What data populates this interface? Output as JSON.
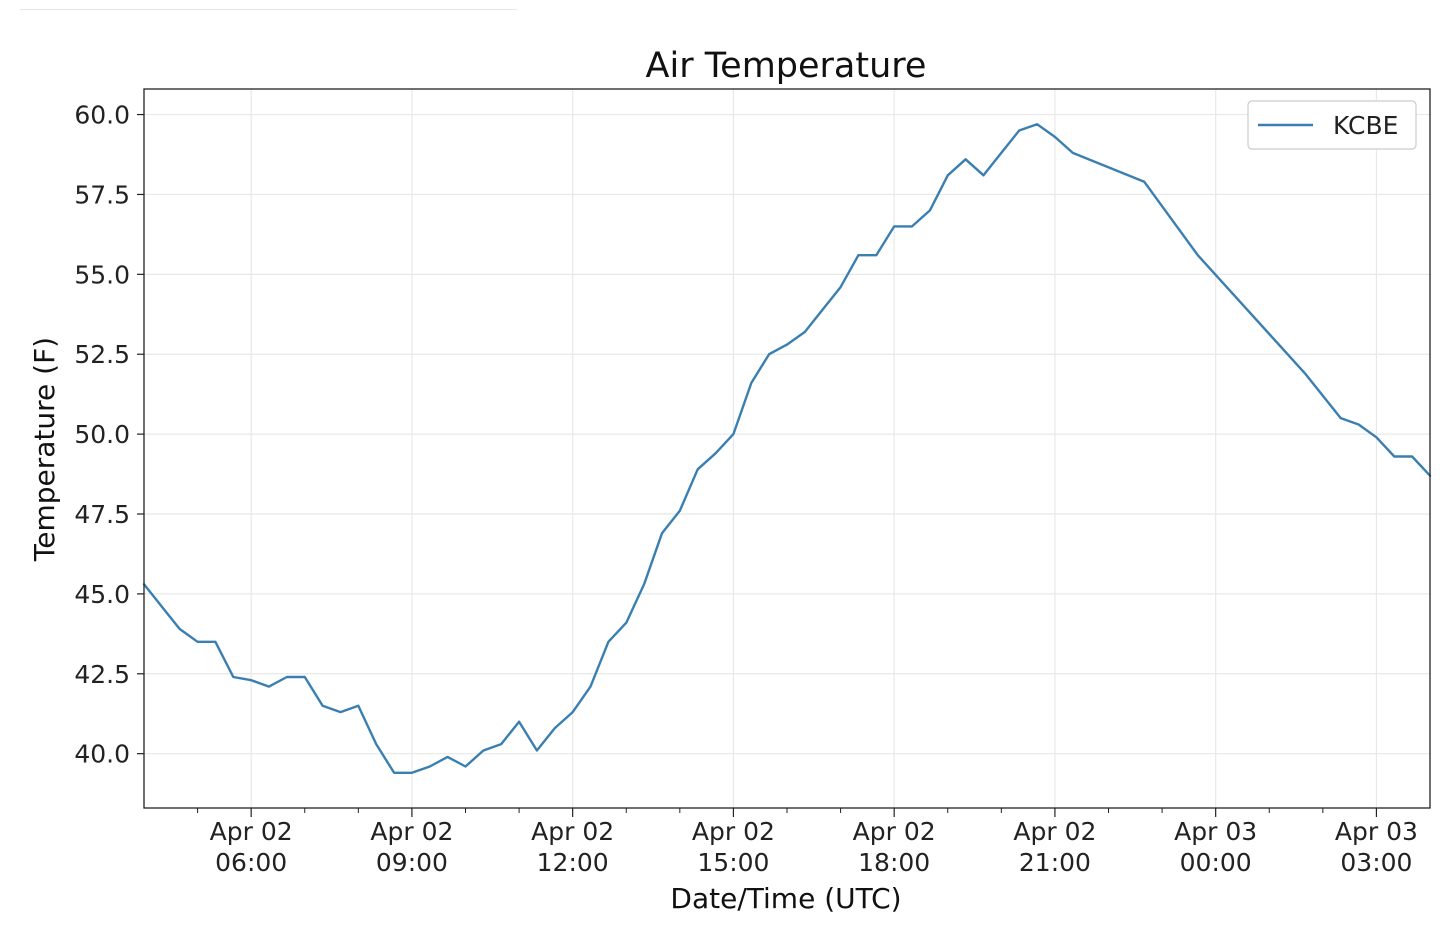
{
  "chart_data": {
    "type": "line",
    "title": "Air Temperature",
    "xlabel": "Date/Time (UTC)",
    "ylabel": "Temperature (F)",
    "ylim": [
      38.3,
      60.8
    ],
    "xlim": [
      "2025-04-02T04:00",
      "2025-04-03T04:00"
    ],
    "grid": true,
    "legend": "top-right",
    "x_ticks": [
      {
        "value": "2025-04-02T06:00",
        "line1": "Apr 02",
        "line2": "06:00"
      },
      {
        "value": "2025-04-02T09:00",
        "line1": "Apr 02",
        "line2": "09:00"
      },
      {
        "value": "2025-04-02T12:00",
        "line1": "Apr 02",
        "line2": "12:00"
      },
      {
        "value": "2025-04-02T15:00",
        "line1": "Apr 02",
        "line2": "15:00"
      },
      {
        "value": "2025-04-02T18:00",
        "line1": "Apr 02",
        "line2": "18:00"
      },
      {
        "value": "2025-04-02T21:00",
        "line1": "Apr 02",
        "line2": "21:00"
      },
      {
        "value": "2025-04-03T00:00",
        "line1": "Apr 03",
        "line2": "00:00"
      },
      {
        "value": "2025-04-03T03:00",
        "line1": "Apr 03",
        "line2": "03:00"
      }
    ],
    "y_ticks": [
      "40.0",
      "42.5",
      "45.0",
      "47.5",
      "50.0",
      "52.5",
      "55.0",
      "57.5",
      "60.0"
    ],
    "series": [
      {
        "name": "KCBE",
        "color": "#3a7fb2",
        "x": [
          "2025-04-02T04:00",
          "2025-04-02T04:20",
          "2025-04-02T04:40",
          "2025-04-02T05:00",
          "2025-04-02T05:20",
          "2025-04-02T05:40",
          "2025-04-02T06:00",
          "2025-04-02T06:20",
          "2025-04-02T06:40",
          "2025-04-02T07:00",
          "2025-04-02T07:20",
          "2025-04-02T07:40",
          "2025-04-02T08:00",
          "2025-04-02T08:20",
          "2025-04-02T08:40",
          "2025-04-02T09:00",
          "2025-04-02T09:20",
          "2025-04-02T09:40",
          "2025-04-02T10:00",
          "2025-04-02T10:20",
          "2025-04-02T10:40",
          "2025-04-02T11:00",
          "2025-04-02T11:20",
          "2025-04-02T11:40",
          "2025-04-02T12:00",
          "2025-04-02T12:20",
          "2025-04-02T12:40",
          "2025-04-02T13:00",
          "2025-04-02T13:20",
          "2025-04-02T13:40",
          "2025-04-02T14:00",
          "2025-04-02T14:20",
          "2025-04-02T14:40",
          "2025-04-02T15:00",
          "2025-04-02T15:20",
          "2025-04-02T15:40",
          "2025-04-02T16:00",
          "2025-04-02T16:20",
          "2025-04-02T16:40",
          "2025-04-02T17:00",
          "2025-04-02T17:20",
          "2025-04-02T17:40",
          "2025-04-02T18:00",
          "2025-04-02T18:20",
          "2025-04-02T18:40",
          "2025-04-02T19:00",
          "2025-04-02T19:20",
          "2025-04-02T19:40",
          "2025-04-02T20:00",
          "2025-04-02T20:20",
          "2025-04-02T20:40",
          "2025-04-02T21:00",
          "2025-04-02T21:20",
          "2025-04-02T22:40",
          "2025-04-02T23:40",
          "2025-04-03T01:40",
          "2025-04-03T02:20",
          "2025-04-03T02:40",
          "2025-04-03T03:00",
          "2025-04-03T03:20",
          "2025-04-03T03:40",
          "2025-04-03T04:00"
        ],
        "y": [
          45.3,
          44.6,
          43.9,
          43.5,
          43.5,
          42.4,
          42.3,
          42.1,
          42.4,
          42.4,
          41.5,
          41.3,
          41.5,
          40.3,
          39.4,
          39.4,
          39.6,
          39.9,
          39.6,
          40.1,
          40.3,
          41.0,
          40.1,
          40.8,
          41.3,
          42.1,
          43.5,
          44.1,
          45.3,
          46.9,
          47.6,
          48.9,
          49.4,
          50.0,
          51.6,
          52.5,
          52.8,
          53.2,
          53.9,
          54.6,
          55.6,
          55.6,
          56.5,
          56.5,
          57.0,
          58.1,
          58.6,
          58.1,
          58.8,
          59.5,
          59.7,
          59.3,
          58.8,
          57.9,
          55.6,
          51.9,
          50.5,
          50.3,
          49.9,
          49.3,
          49.3,
          48.7
        ]
      }
    ]
  }
}
